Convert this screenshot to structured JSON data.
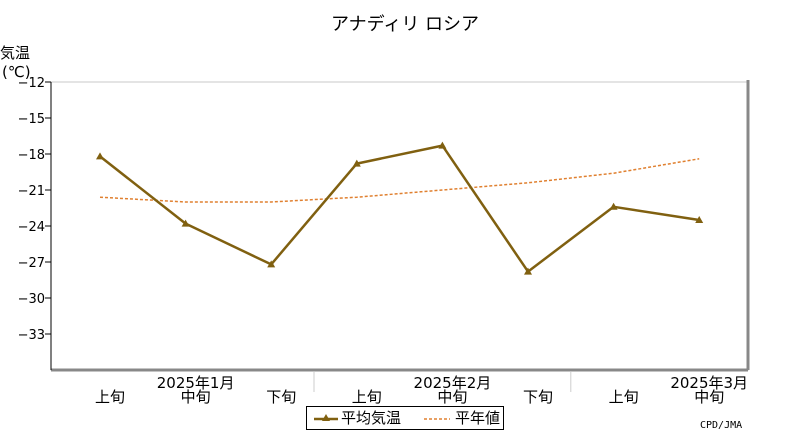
{
  "chart_data": {
    "type": "line",
    "title": "アナディリ ロシア",
    "ylabel_line1": "気温",
    "ylabel_line2": "(℃)",
    "ylim": [
      -36,
      -12
    ],
    "yticks": [
      -12,
      -15,
      -18,
      -21,
      -24,
      -27,
      -30,
      -33
    ],
    "grid": true,
    "x": [
      "上旬",
      "中旬",
      "下旬",
      "上旬",
      "中旬",
      "下旬",
      "上旬",
      "中旬"
    ],
    "month_labels": [
      {
        "label": "2025年1月",
        "index": 1
      },
      {
        "label": "2025年2月",
        "index": 4
      },
      {
        "label": "2025年3月",
        "index": 7
      }
    ],
    "series": [
      {
        "name": "平均気温",
        "values": [
          -18.2,
          -23.8,
          -27.2,
          -18.8,
          -17.3,
          -27.8,
          -22.4,
          -23.5
        ],
        "color": "#806010",
        "style": "solid",
        "marker": "triangle"
      },
      {
        "name": "平年値",
        "values": [
          -21.6,
          -22.0,
          -22.0,
          -21.6,
          -21.0,
          -20.4,
          -19.6,
          -18.4
        ],
        "color": "#e08030",
        "style": "dashed"
      }
    ],
    "legend_position": "bottom-center"
  },
  "credit": "CPD/JMA"
}
